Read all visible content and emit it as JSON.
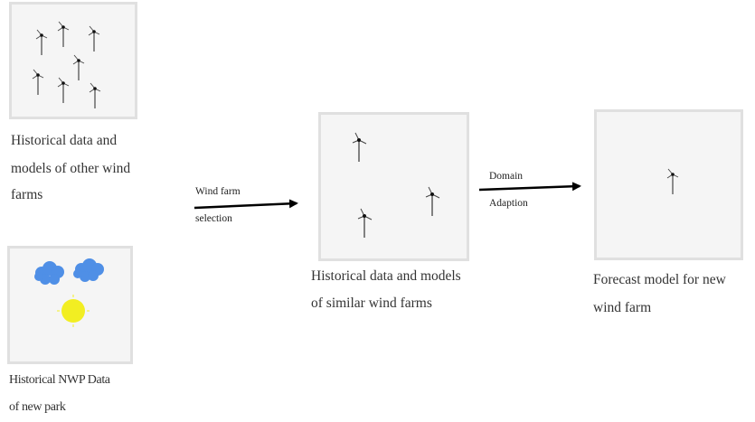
{
  "captions": {
    "other_farms": [
      "Historical data and",
      "models of other wind",
      "farms"
    ],
    "nwp": [
      "Historical NWP Data",
      "of new park"
    ],
    "similar_farms": [
      "Historical data and models",
      "of similar wind farms"
    ],
    "forecast": [
      "Forecast model for new",
      "wind farm"
    ]
  },
  "arrows": {
    "selection": [
      "Wind farm",
      "selection"
    ],
    "adaption": [
      "Domain",
      "Adaption"
    ]
  },
  "icons": {
    "turbine": "wind-turbine-icon",
    "cloud": "cloud-icon",
    "sun": "sun-icon"
  },
  "colors": {
    "cloud": "#4f8fe6",
    "sun": "#f2ee22",
    "arrow": "#000000",
    "panel_border": "#e0e0e0",
    "panel_fill": "#f5f5f5"
  }
}
